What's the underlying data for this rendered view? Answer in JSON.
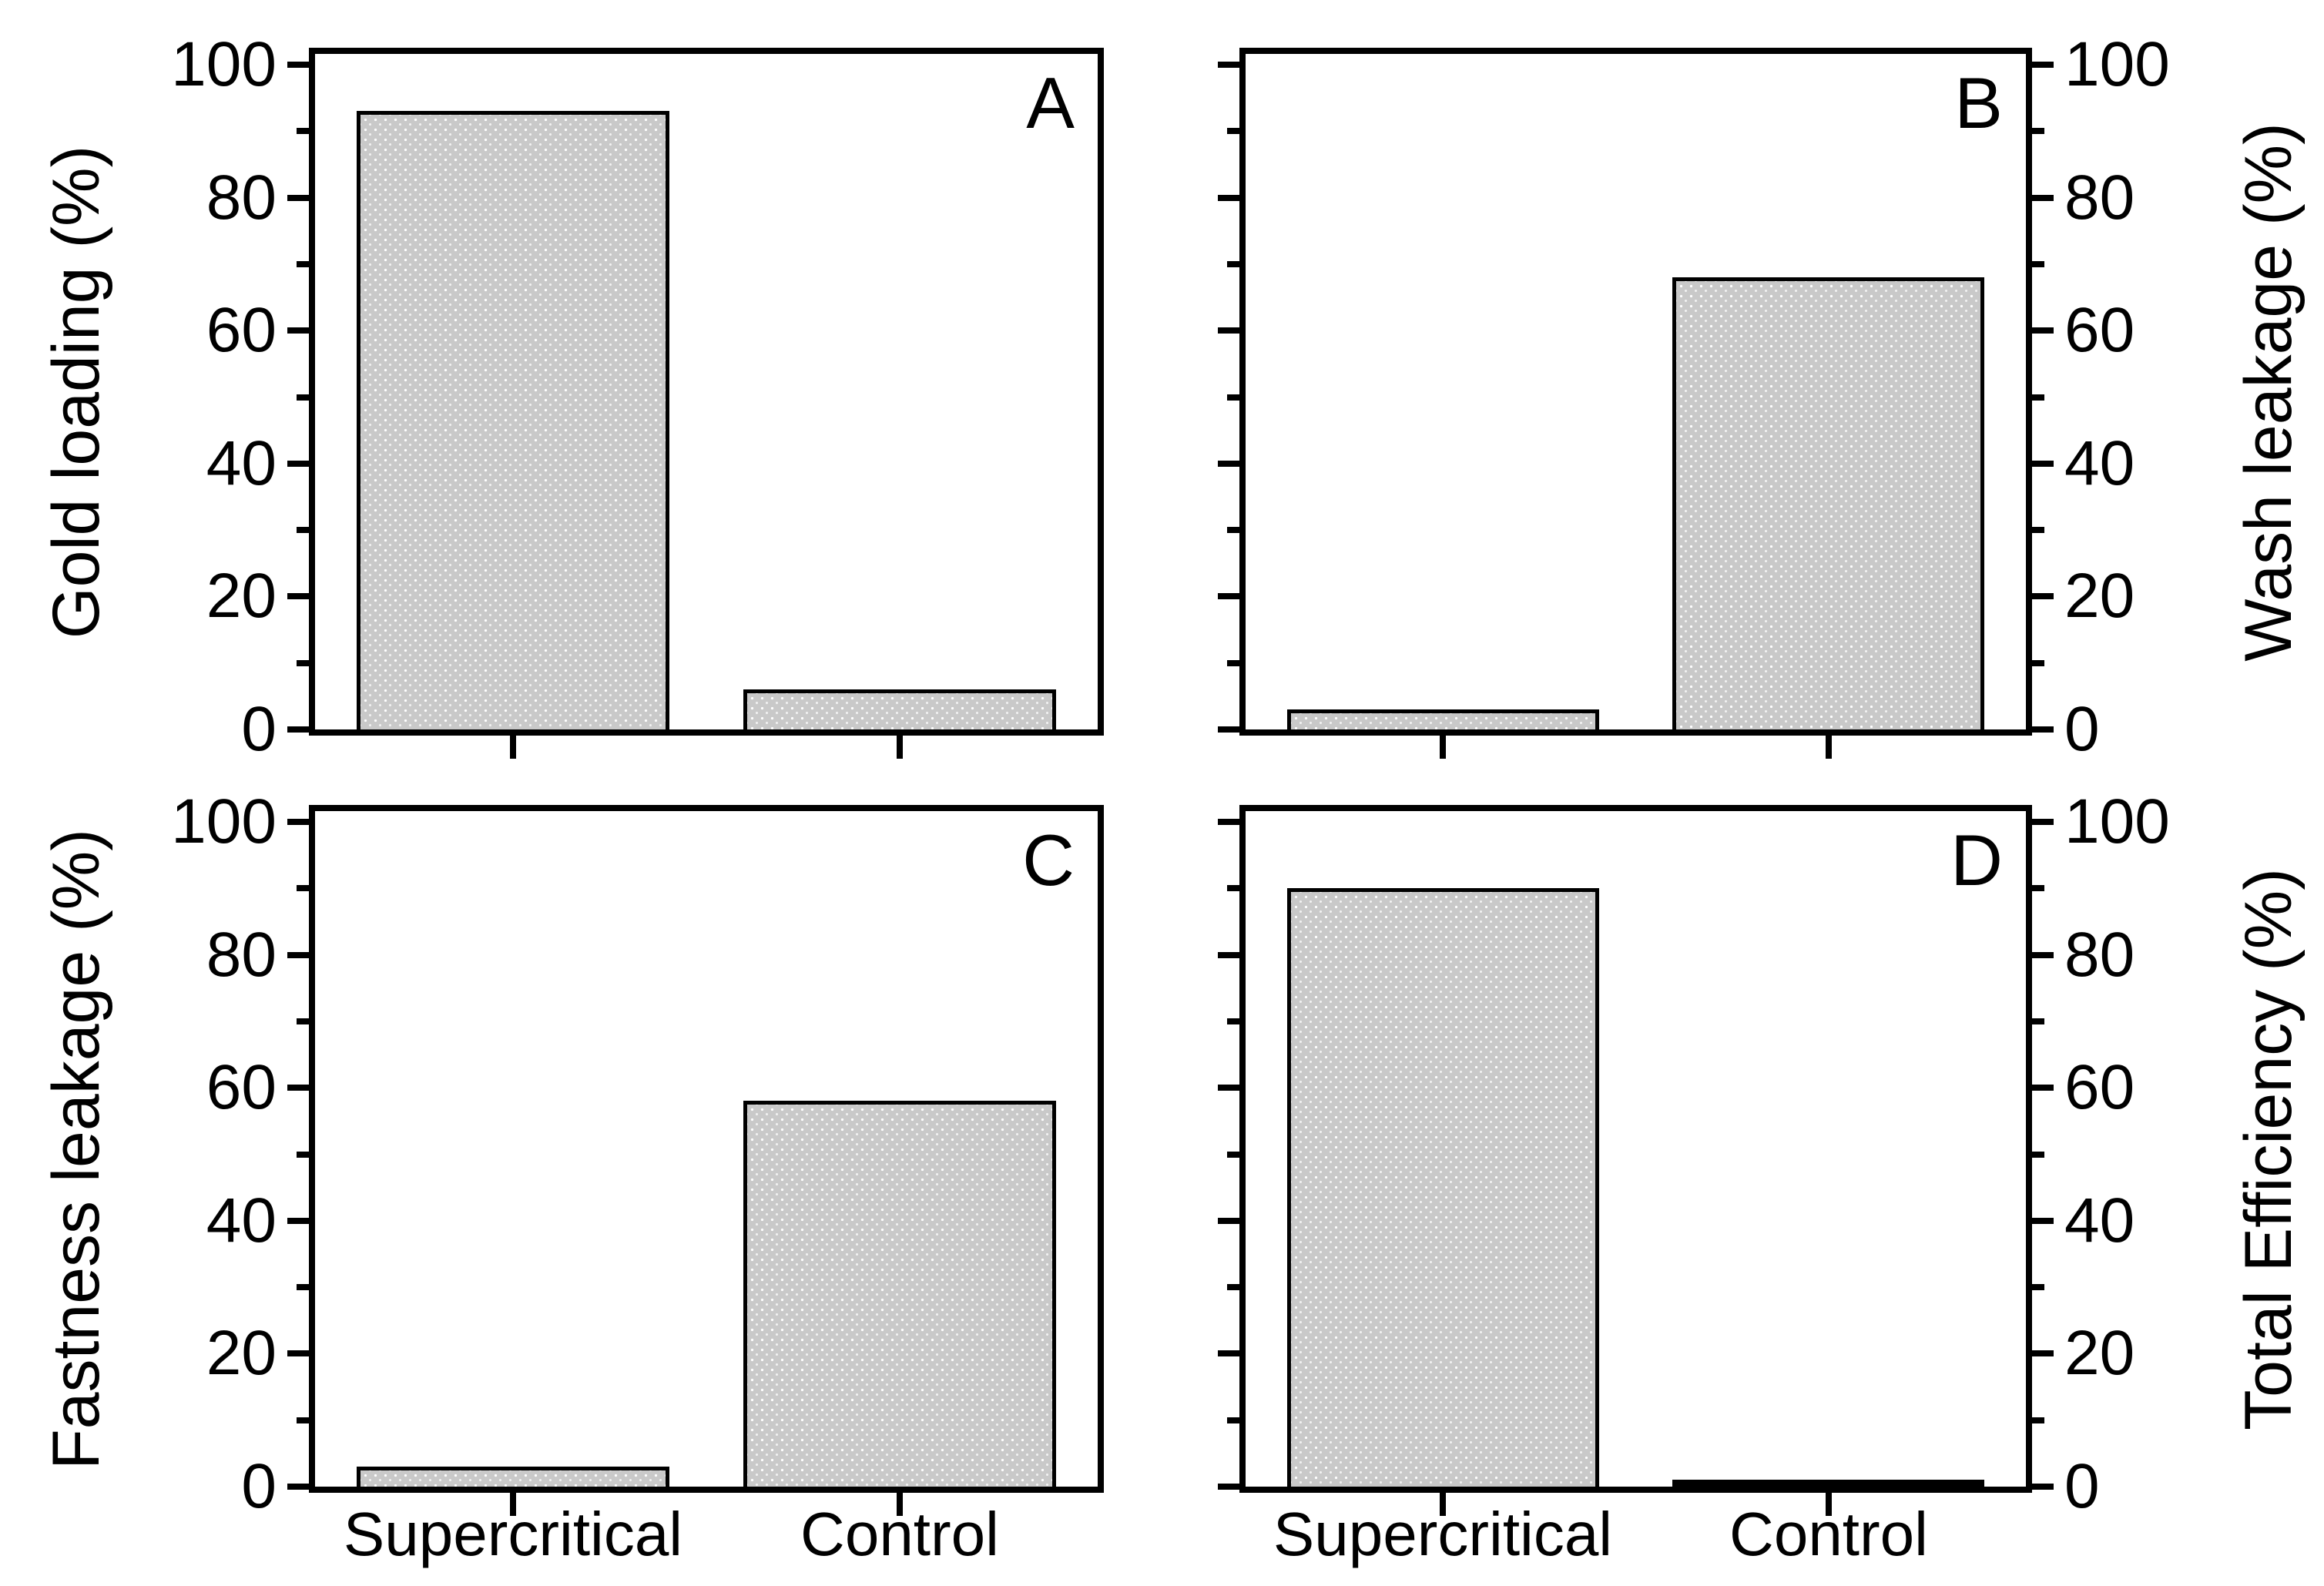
{
  "chart_data": [
    {
      "type": "bar",
      "panel": "A",
      "ylabel": "Gold loading (%)",
      "ylabel_side": "left",
      "categories": [
        "Supercritical",
        "Control"
      ],
      "values": [
        93,
        6
      ],
      "ylim": [
        0,
        100
      ],
      "yticks_major": [
        0,
        20,
        40,
        60,
        80,
        100
      ],
      "yticks_minor_step": 10,
      "grid": false,
      "legend": "none",
      "bar_colors": [
        "#c9c9c9",
        "#c9c9c9"
      ],
      "show_x_tick_labels": false
    },
    {
      "type": "bar",
      "panel": "B",
      "ylabel": "Wash leakage (%)",
      "ylabel_side": "right",
      "categories": [
        "Supercritical",
        "Control"
      ],
      "values": [
        3,
        68
      ],
      "ylim": [
        0,
        100
      ],
      "yticks_major": [
        0,
        20,
        40,
        60,
        80,
        100
      ],
      "yticks_minor_step": 10,
      "grid": false,
      "legend": "none",
      "bar_colors": [
        "#c9c9c9",
        "#c9c9c9"
      ],
      "show_x_tick_labels": false
    },
    {
      "type": "bar",
      "panel": "C",
      "ylabel": "Fastness leakage (%)",
      "ylabel_side": "left",
      "categories": [
        "Supercritical",
        "Control"
      ],
      "values": [
        3,
        58
      ],
      "ylim": [
        0,
        100
      ],
      "yticks_major": [
        0,
        20,
        40,
        60,
        80,
        100
      ],
      "yticks_minor_step": 10,
      "grid": false,
      "legend": "none",
      "bar_colors": [
        "#c9c9c9",
        "#c9c9c9"
      ],
      "show_x_tick_labels": true
    },
    {
      "type": "bar",
      "panel": "D",
      "ylabel": "Total Efficiency (%)",
      "ylabel_side": "right",
      "categories": [
        "Supercritical",
        "Control"
      ],
      "values": [
        90,
        1
      ],
      "ylim": [
        0,
        100
      ],
      "yticks_major": [
        0,
        20,
        40,
        60,
        80,
        100
      ],
      "yticks_minor_step": 10,
      "grid": false,
      "legend": "none",
      "bar_colors": [
        "#c9c9c9",
        "#000000"
      ],
      "show_x_tick_labels": true
    }
  ],
  "style": {
    "background": "#ffffff",
    "axis_color": "#000000",
    "bar_fill": "#c9c9c9",
    "bar_border": "#000000",
    "dark_bar_fill": "#000000",
    "text_color": "#000000"
  }
}
